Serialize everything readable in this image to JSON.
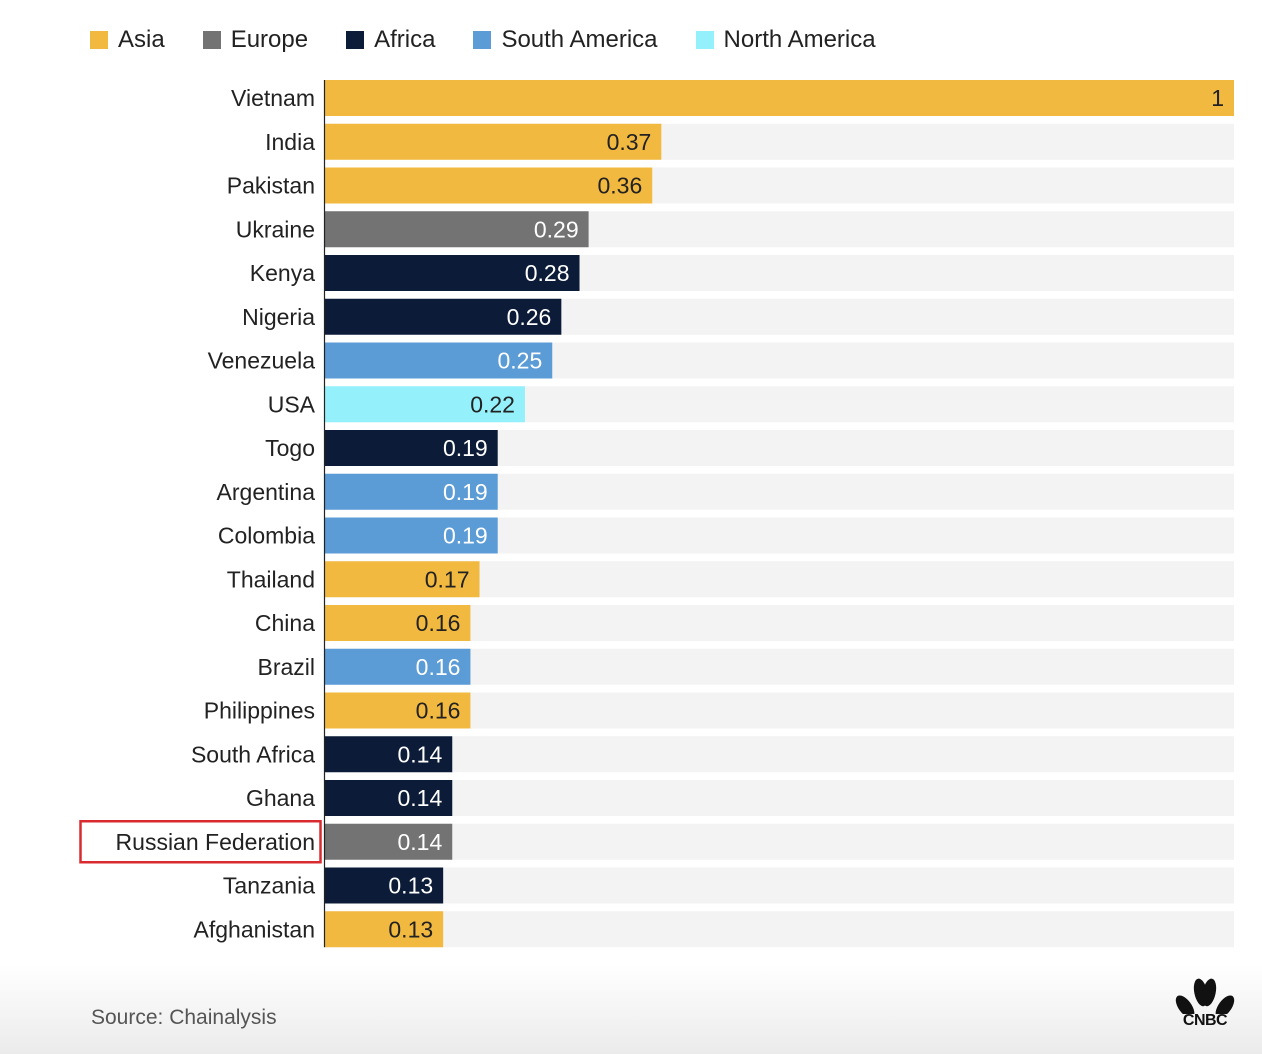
{
  "colors": {
    "Asia": "#f2b941",
    "Europe": "#737373",
    "Africa": "#0c1c38",
    "South America": "#5b9bd6",
    "North America": "#94f1fb",
    "track": "#f3f3f3",
    "highlight_box": "#d82a2f"
  },
  "legend": [
    {
      "label": "Asia",
      "color": "#f2b941"
    },
    {
      "label": "Europe",
      "color": "#737373"
    },
    {
      "label": "Africa",
      "color": "#0c1c38"
    },
    {
      "label": "South America",
      "color": "#5b9bd6"
    },
    {
      "label": "North America",
      "color": "#94f1fb"
    }
  ],
  "chart_data": {
    "type": "bar",
    "orientation": "horizontal",
    "xlim": [
      0,
      1
    ],
    "grid": false,
    "legend_position": "top-left",
    "categories": [
      "Vietnam",
      "India",
      "Pakistan",
      "Ukraine",
      "Kenya",
      "Nigeria",
      "Venezuela",
      "USA",
      "Togo",
      "Argentina",
      "Colombia",
      "Thailand",
      "China",
      "Brazil",
      "Philippines",
      "South Africa",
      "Ghana",
      "Russian Federation",
      "Tanzania",
      "Afghanistan"
    ],
    "values": [
      1,
      0.37,
      0.36,
      0.29,
      0.28,
      0.26,
      0.25,
      0.22,
      0.19,
      0.19,
      0.19,
      0.17,
      0.16,
      0.16,
      0.16,
      0.14,
      0.14,
      0.14,
      0.13,
      0.13
    ],
    "value_labels": [
      "1",
      "0.37",
      "0.36",
      "0.29",
      "0.28",
      "0.26",
      "0.25",
      "0.22",
      "0.19",
      "0.19",
      "0.19",
      "0.17",
      "0.16",
      "0.16",
      "0.16",
      "0.14",
      "0.14",
      "0.14",
      "0.13",
      "0.13"
    ],
    "regions": [
      "Asia",
      "Asia",
      "Asia",
      "Europe",
      "Africa",
      "Africa",
      "South America",
      "North America",
      "Africa",
      "South America",
      "South America",
      "Asia",
      "Asia",
      "South America",
      "Asia",
      "Africa",
      "Africa",
      "Europe",
      "Africa",
      "Asia"
    ],
    "highlighted": "Russian Federation"
  },
  "footer": {
    "source": "Source: Chainalysis",
    "logo_text": "CNBC"
  }
}
